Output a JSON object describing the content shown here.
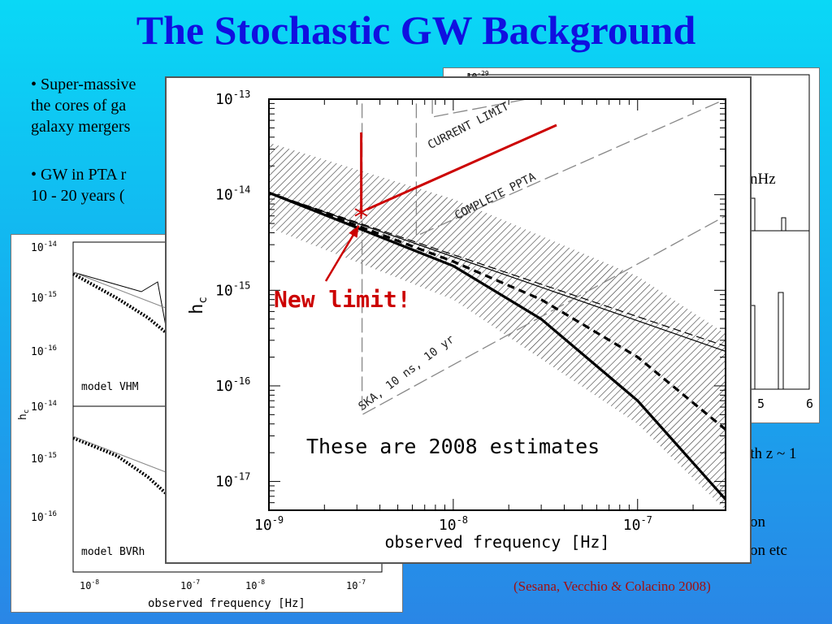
{
  "title": "The Stochastic GW Background",
  "bullets": {
    "b1_line1": "• Super-massive",
    "b1_line2": "the cores of ga",
    "b1_line3": "galaxy mergers",
    "b2_line1": "• GW in PTA r",
    "b2_line2": "10 - 20 years ("
  },
  "side_text": {
    "nhz": "nHz",
    "z1": "ith z ~ 1",
    "on": "on",
    "on_etc": "on etc"
  },
  "citation": "(Sesana, Vecchio & Colacino 2008)",
  "annotations": {
    "new_limit": "New limit!",
    "estimates": "These are 2008 estimates",
    "marker": "*",
    "colors": {
      "annotation": "#cc0000"
    }
  },
  "chart_data": [
    {
      "type": "line",
      "xlabel": "observed frequency [Hz]",
      "ylabel": "h",
      "ylabel_sub": "c",
      "x_scale": "log",
      "y_scale": "log",
      "xlim": [
        1e-09,
        3e-07
      ],
      "ylim": [
        5e-18,
        1e-13
      ],
      "x_ticks": [
        {
          "v": 1e-09,
          "label": "10",
          "exp": "-9"
        },
        {
          "v": 1e-08,
          "label": "10",
          "exp": "-8"
        },
        {
          "v": 1e-07,
          "label": "10",
          "exp": "-7"
        }
      ],
      "y_ticks": [
        {
          "v": 1e-13,
          "label": "10",
          "exp": "-13"
        },
        {
          "v": 1e-14,
          "label": "10",
          "exp": "-14"
        },
        {
          "v": 1e-15,
          "label": "10",
          "exp": "-15"
        },
        {
          "v": 1e-16,
          "label": "10",
          "exp": "-16"
        },
        {
          "v": 1e-17,
          "label": "10",
          "exp": "-17"
        }
      ],
      "band": {
        "upper": [
          [
            1e-09,
            3.5e-14
          ],
          [
            1e-08,
            9e-15
          ],
          [
            1e-07,
            1.4e-15
          ],
          [
            3e-07,
            3.5e-16
          ]
        ],
        "lower": [
          [
            1e-09,
            4.5e-15
          ],
          [
            1e-08,
            8e-16
          ],
          [
            1e-07,
            4e-17
          ],
          [
            3e-07,
            5e-18
          ]
        ]
      },
      "series": [
        {
          "style": "thick-solid",
          "points": [
            [
              1e-09,
              1.05e-14
            ],
            [
              1e-08,
              1.8e-15
            ],
            [
              3e-08,
              5e-16
            ],
            [
              1e-07,
              7e-17
            ],
            [
              3e-07,
              6.5e-18
            ]
          ]
        },
        {
          "style": "thick-dashed",
          "points": [
            [
              1e-09,
              1.05e-14
            ],
            [
              1e-08,
              2e-15
            ],
            [
              3e-08,
              8e-16
            ],
            [
              1e-07,
              2e-16
            ],
            [
              3e-07,
              3.5e-17
            ]
          ]
        },
        {
          "style": "thin-solid",
          "points": [
            [
              1e-09,
              1.05e-14
            ],
            [
              3e-07,
              2.3e-16
            ]
          ]
        },
        {
          "style": "thin-dashed",
          "points": [
            [
              1e-09,
              1.05e-14
            ],
            [
              3e-07,
              2.6e-16
            ]
          ]
        }
      ],
      "sensitivity_curves": [
        {
          "label": "CURRENT LIMIT",
          "points": [
            [
              7.7e-09,
              1e-13
            ],
            [
              7.7e-09,
              6.5e-14
            ],
            [
              2.5e-08,
              1e-13
            ]
          ],
          "label_at": [
            7.5e-09,
            3e-14
          ]
        },
        {
          "label": "COMPLETE PPTA",
          "points": [
            [
              6.3e-09,
              9e-14
            ],
            [
              6.3e-09,
              3.7e-15
            ],
            [
              3e-07,
              1e-13
            ]
          ],
          "label_at": [
            1.05e-08,
            5.5e-15
          ]
        },
        {
          "label": "SKA, 10 ns, 10 yr",
          "points": [
            [
              3.2e-09,
              9e-14
            ],
            [
              3.2e-09,
              5e-17
            ],
            [
              3e-07,
              6e-15
            ]
          ],
          "label_at": [
            3.2e-09,
            5.5e-17
          ]
        }
      ],
      "new_limit_point": [
        3.2e-09,
        6e-15
      ]
    },
    {
      "type": "line",
      "xlabel": "observed frequency [Hz]",
      "ylabel": "h",
      "ylabel_sub": "c",
      "panels": [
        {
          "label": "model VHM",
          "y_ticks": [
            {
              "label": "10",
              "exp": "-14"
            },
            {
              "label": "10",
              "exp": "-15"
            },
            {
              "label": "10",
              "exp": "-16"
            }
          ]
        },
        {
          "label": "model BVRh",
          "y_ticks": [
            {
              "label": "10",
              "exp": "-14"
            },
            {
              "label": "10",
              "exp": "-15"
            },
            {
              "label": "10",
              "exp": "-16"
            }
          ]
        }
      ],
      "x_ticks": [
        {
          "label": "10",
          "exp": "-8"
        },
        {
          "label": "10",
          "exp": "-7"
        },
        {
          "label": "10",
          "exp": "-8"
        },
        {
          "label": "10",
          "exp": "-7"
        }
      ]
    },
    {
      "type": "bar",
      "y_ticks_top": [
        {
          "label": "10",
          "exp": "-29"
        }
      ],
      "x_ticks": [
        {
          "v": 5,
          "label": "5"
        },
        {
          "v": 6,
          "label": "6"
        }
      ]
    }
  ]
}
